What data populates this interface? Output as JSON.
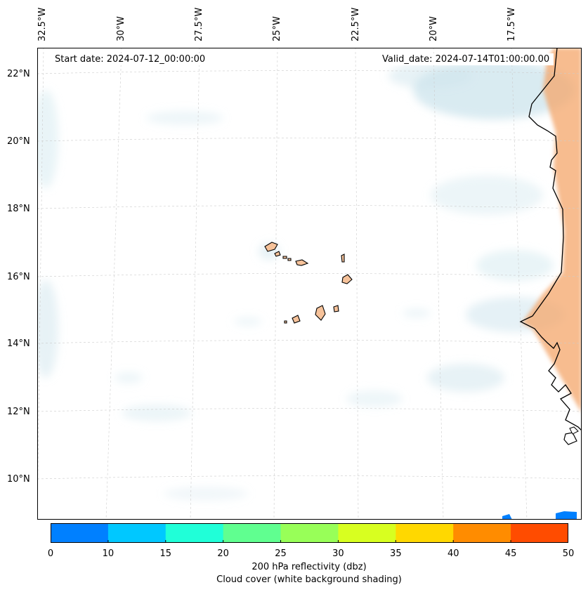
{
  "header": {
    "start_date": "Start date: 2024-07-12_00:00:00",
    "valid_date": "Valid_date: 2024-07-14T01:00:00.00"
  },
  "longitude_labels": [
    "32.5°W",
    "30°W",
    "27.5°W",
    "25°W",
    "22.5°W",
    "20°W",
    "17.5°W"
  ],
  "latitude_labels": [
    "22°N",
    "20°N",
    "18°N",
    "16°N",
    "14°N",
    "12°N",
    "10°N"
  ],
  "colorbar": {
    "ticks": [
      "0",
      "10",
      "15",
      "20",
      "25",
      "30",
      "35",
      "40",
      "45",
      "50"
    ],
    "colors": [
      "#0080ff",
      "#00c8ff",
      "#20ffd8",
      "#60ff90",
      "#98ff58",
      "#d8ff20",
      "#ffd800",
      "#ff8c00",
      "#ff4c00"
    ],
    "label_line1": "200 hPa reflectivity (dbz)",
    "label_line2": "Cloud cover (white background shading)"
  },
  "colors": {
    "land_fill": "#f6c29a",
    "land_shading": "#f4a56a",
    "cloud_shading": "#cfe6ee",
    "coastline": "#000000",
    "grid": "#cccccc"
  }
}
